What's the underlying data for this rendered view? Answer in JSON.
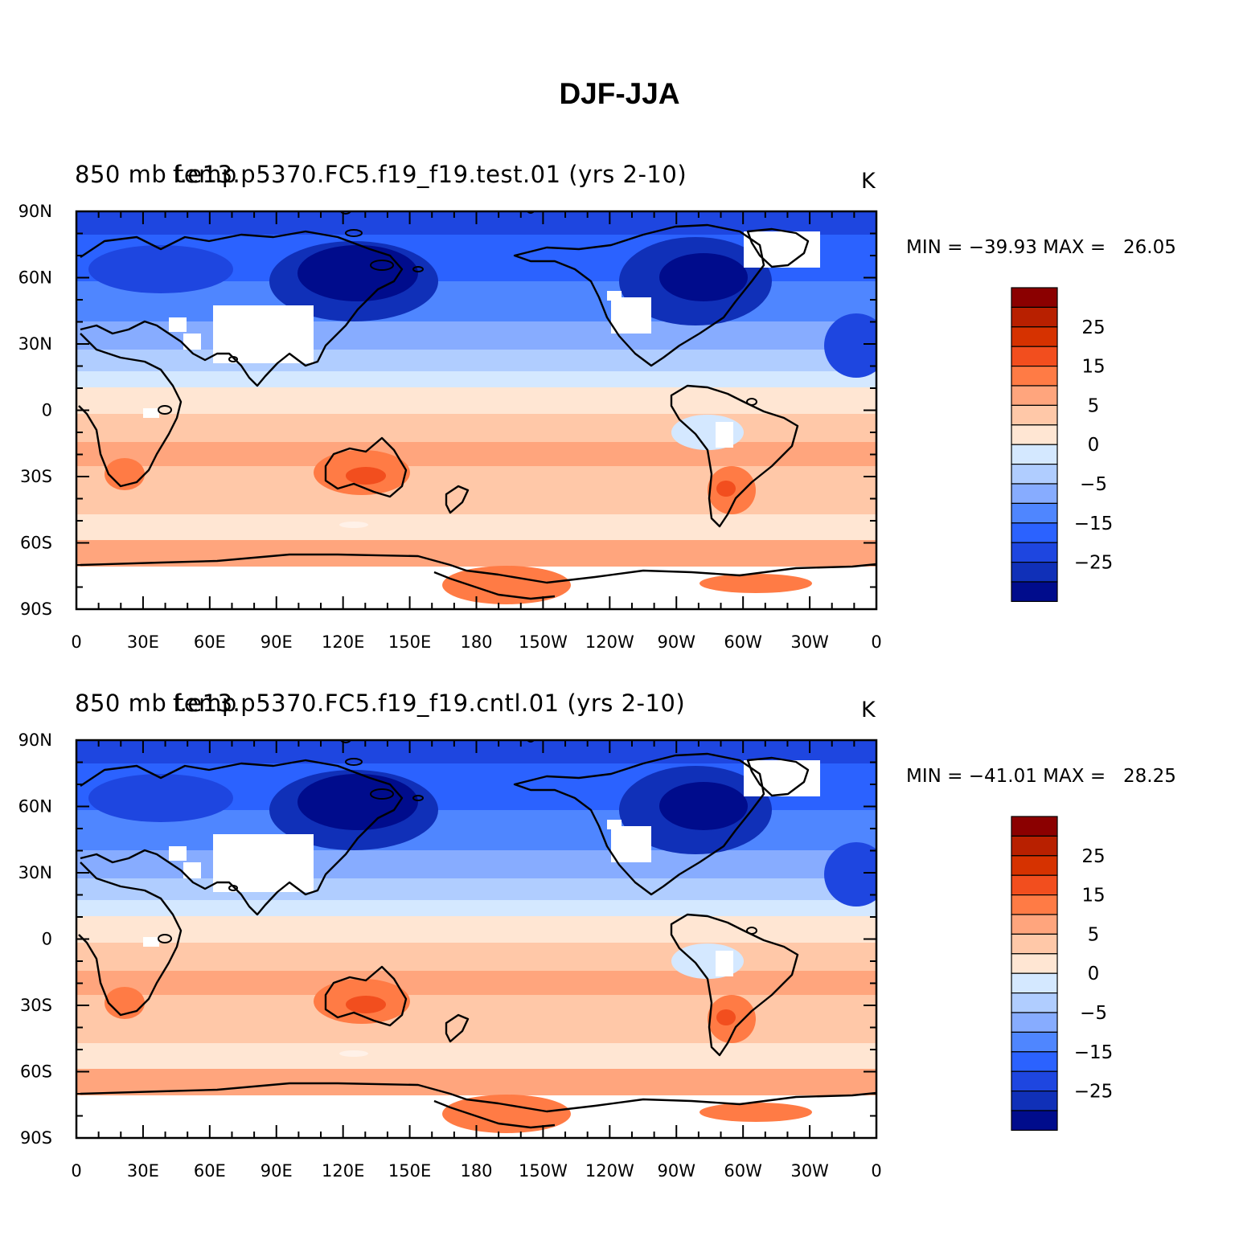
{
  "title": "DJF-JJA",
  "panels": [
    {
      "left_label": "850 mb temp",
      "case_label": "f.e13.p5370.FC5.f19_f19.test.01 (yrs 2-10)",
      "units": "K",
      "min_label": "MIN =",
      "min_value": "−39.93",
      "max_label": "MAX =",
      "max_value": "26.05"
    },
    {
      "left_label": "850 mb temp",
      "case_label": "f.e13.p5370.FC5.f19_f19.cntl.01 (yrs 2-10)",
      "units": "K",
      "min_label": "MIN =",
      "min_value": "−41.01",
      "max_label": "MAX =",
      "max_value": "28.25"
    }
  ],
  "lat_labels": [
    "90N",
    "60N",
    "30N",
    "0",
    "30S",
    "60S",
    "90S"
  ],
  "lon_labels": [
    "0",
    "30E",
    "60E",
    "90E",
    "120E",
    "150E",
    "180",
    "150W",
    "120W",
    "90W",
    "60W",
    "30W",
    "0"
  ],
  "colorbar": {
    "labels": [
      "25",
      "15",
      "5",
      "0",
      "−5",
      "−15",
      "−25"
    ],
    "colors": [
      "#8b0000",
      "#b82000",
      "#d63200",
      "#f24e1e",
      "#ff7b45",
      "#ffa57d",
      "#ffc8a8",
      "#ffe6d3",
      "#d4e8ff",
      "#b0cdff",
      "#87acff",
      "#4f86ff",
      "#2b62ff",
      "#1e46e0",
      "#1030b8",
      "#000c8c"
    ]
  }
}
